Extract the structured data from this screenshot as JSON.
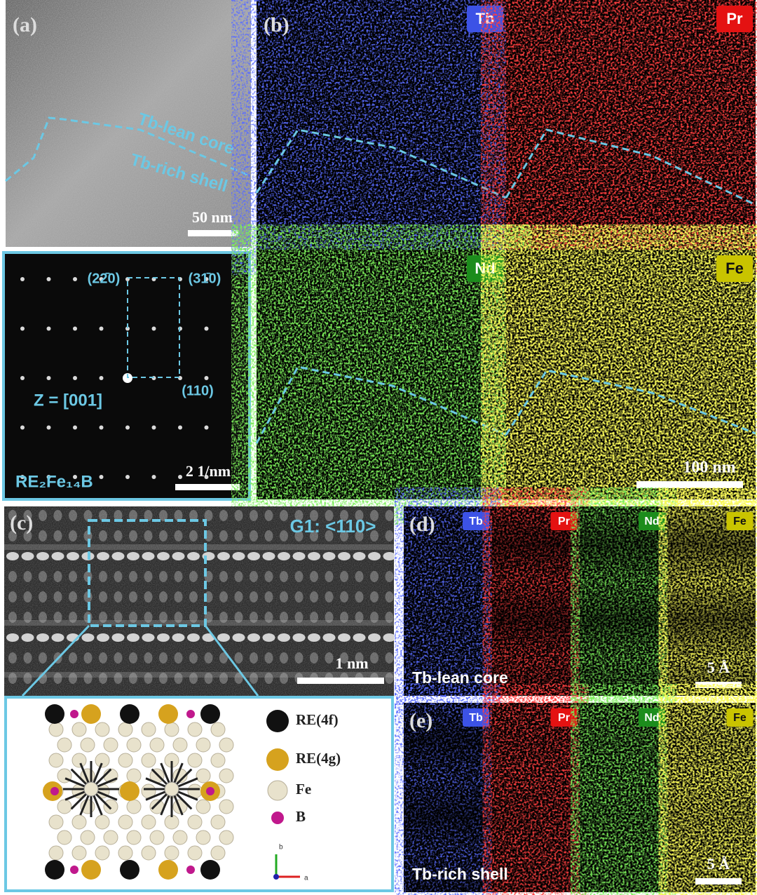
{
  "panels": {
    "a": {
      "label": "(a)",
      "annotations": [
        "Tb-lean core",
        "Tb-rich shell"
      ],
      "scale_bar": "50 nm"
    },
    "a_diffraction": {
      "spots": [
        "(22̄0)",
        "(31̄0)",
        "(110)"
      ],
      "zone_axis": "Z = [001]",
      "phase": "RE₂Fe₁₄B",
      "scale_bar": "2 1/nm"
    },
    "b": {
      "label": "(b)",
      "elements": [
        "Tb",
        "Pr",
        "Nd",
        "Fe"
      ],
      "scale_bar": "100 nm"
    },
    "c": {
      "label": "(c)",
      "orientation": "G1: <110>",
      "scale_bar": "1 nm",
      "legend": [
        "RE(4f)",
        "RE(4g)",
        "Fe",
        "B"
      ],
      "axes": [
        "b",
        "a"
      ]
    },
    "d": {
      "label": "(d)",
      "elements": [
        "Tb",
        "Pr",
        "Nd",
        "Fe"
      ],
      "region": "Tb-lean core",
      "scale_bar": "5 Å"
    },
    "e": {
      "label": "(e)",
      "elements": [
        "Tb",
        "Pr",
        "Nd",
        "Fe"
      ],
      "region": "Tb-rich shell",
      "scale_bar": "5 Å"
    }
  }
}
